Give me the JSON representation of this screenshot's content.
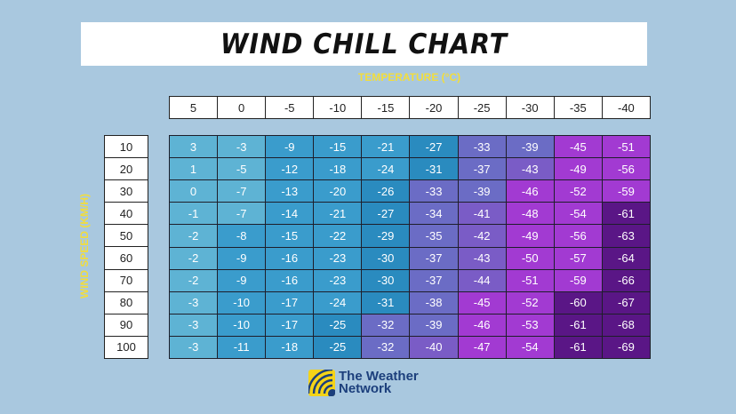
{
  "title": "WIND CHILL CHART",
  "x_axis_label": "TEMPERATURE (°C)",
  "y_axis_label": "WIND SPEED (KM/H)",
  "brand": {
    "line1": "The Weather",
    "line2": "Network",
    "icon": "weather-network-logo-icon"
  },
  "colors": {
    "background": "#a9c8df",
    "accent_label": "#f2dd3c",
    "scale": [
      {
        "min": 10,
        "color": "#5eb3d4"
      },
      {
        "min": -8,
        "color": "#3a9ccc"
      },
      {
        "min": -25,
        "color": "#2a8bbf"
      },
      {
        "min": -32,
        "color": "#6b6cc5"
      },
      {
        "min": -40,
        "color": "#7a5cc6"
      },
      {
        "min": -45,
        "color": "#a23ad2"
      },
      {
        "min": -60,
        "color": "#5a1686"
      },
      {
        "min": -80,
        "color": "#2b0a45"
      }
    ]
  },
  "chart_data": {
    "type": "heatmap",
    "title": "WIND CHILL CHART",
    "xlabel": "TEMPERATURE (°C)",
    "ylabel": "WIND SPEED (KM/H)",
    "x": [
      "5",
      "0",
      "-5",
      "-10",
      "-15",
      "-20",
      "-25",
      "-30",
      "-35",
      "-40"
    ],
    "y": [
      "10",
      "20",
      "30",
      "40",
      "50",
      "60",
      "70",
      "80",
      "90",
      "100"
    ],
    "values": [
      [
        3,
        -3,
        -9,
        -15,
        -21,
        -27,
        -33,
        -39,
        -45,
        -51
      ],
      [
        1,
        -5,
        -12,
        -18,
        -24,
        -31,
        -37,
        -43,
        -49,
        -56
      ],
      [
        0,
        -7,
        -13,
        -20,
        -26,
        -33,
        -39,
        -46,
        -52,
        -59
      ],
      [
        -1,
        -7,
        -14,
        -21,
        -27,
        -34,
        -41,
        -48,
        -54,
        -61
      ],
      [
        -2,
        -8,
        -15,
        -22,
        -29,
        -35,
        -42,
        -49,
        -56,
        -63
      ],
      [
        -2,
        -9,
        -16,
        -23,
        -30,
        -37,
        -43,
        -50,
        -57,
        -64
      ],
      [
        -2,
        -9,
        -16,
        -23,
        -30,
        -37,
        -44,
        -51,
        -59,
        -66
      ],
      [
        -3,
        -10,
        -17,
        -24,
        -31,
        -38,
        -45,
        -52,
        -60,
        -67
      ],
      [
        -3,
        -10,
        -17,
        -25,
        -32,
        -39,
        -46,
        -53,
        -61,
        -68
      ],
      [
        -3,
        -11,
        -18,
        -25,
        -32,
        -40,
        -47,
        -54,
        -61,
        -69
      ]
    ]
  }
}
